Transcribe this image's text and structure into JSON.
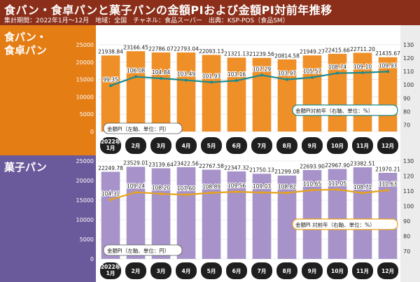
{
  "header": {
    "title": "食パン・食卓パンと菓子パンの金額PIおよび金額PI対前年推移",
    "subtitle": "集計期間：2022年1月～12月　地域：全国　チャネル：食品スーパー　出典：KSP-POS（食品SM）"
  },
  "colors": {
    "header_bg": "#8b2f1a",
    "bread_accent": "#e47d14",
    "bread_bar": "#ef8f28",
    "sweet_accent": "#6a5a9b",
    "sweet_bar": "#a793c9",
    "line_bread": "#1a8a8c",
    "line_sweet": "#e6a21a",
    "month_label_bg": "#1f1f1f"
  },
  "chart_data": [
    {
      "type": "bar",
      "panel_label": "食パン・\n食卓パン",
      "categories": [
        "2022年\n1月",
        "2月",
        "3月",
        "4月",
        "5月",
        "6月",
        "7月",
        "8月",
        "9月",
        "10月",
        "11月",
        "12月"
      ],
      "series": [
        {
          "name": "金額PI（左軸、単位：円）",
          "type": "bar",
          "axis": "left",
          "values": [
            21938.84,
            23166.45,
            22786.07,
            22793.04,
            22093.13,
            21321.13,
            21239.56,
            20814.58,
            21949.27,
            22415.66,
            22711.2,
            21435.67
          ]
        },
        {
          "name": "金額PI対前年（右軸、単位：%）",
          "type": "line",
          "axis": "right",
          "values": [
            99.35,
            106.08,
            104.84,
            103.49,
            101.93,
            103.16,
            107.29,
            103.97,
            105.57,
            108.74,
            109.1,
            109.93
          ]
        }
      ],
      "y_left_ticks": [
        0,
        5000,
        10000,
        15000,
        20000,
        25000
      ],
      "y_right_ticks": [
        70,
        80,
        90,
        100,
        110,
        120,
        130
      ],
      "ylim_left": [
        0,
        25000
      ],
      "ylim_right": [
        65,
        130
      ],
      "grid": true,
      "legend_placement": "in-plot"
    },
    {
      "type": "bar",
      "panel_label": "菓子パン",
      "categories": [
        "2022年\n1月",
        "2月",
        "3月",
        "4月",
        "5月",
        "6月",
        "7月",
        "8月",
        "9月",
        "10月",
        "11月",
        "12月"
      ],
      "series": [
        {
          "name": "金額PI（左軸、単位：円）",
          "type": "bar",
          "axis": "left",
          "values": [
            22249.78,
            23529.01,
            23139.64,
            23422.56,
            22767.58,
            22347.32,
            21750.13,
            21299.08,
            22693.9,
            22967.9,
            23382.51,
            21970.21
          ]
        },
        {
          "name": "金額PI 対前年（右軸、単位：%）",
          "type": "line",
          "axis": "right",
          "values": [
            104.31,
            109.24,
            108.2,
            107.6,
            108.89,
            109.56,
            109.03,
            108.82,
            110.65,
            111.05,
            108.71,
            110.63
          ]
        }
      ],
      "y_left_ticks": [
        0,
        5000,
        10000,
        15000,
        20000,
        25000
      ],
      "y_right_ticks": [
        70,
        80,
        90,
        100,
        110,
        120,
        130
      ],
      "ylim_left": [
        0,
        25000
      ],
      "ylim_right": [
        65,
        130
      ],
      "grid": true,
      "legend_placement": "in-plot"
    }
  ]
}
